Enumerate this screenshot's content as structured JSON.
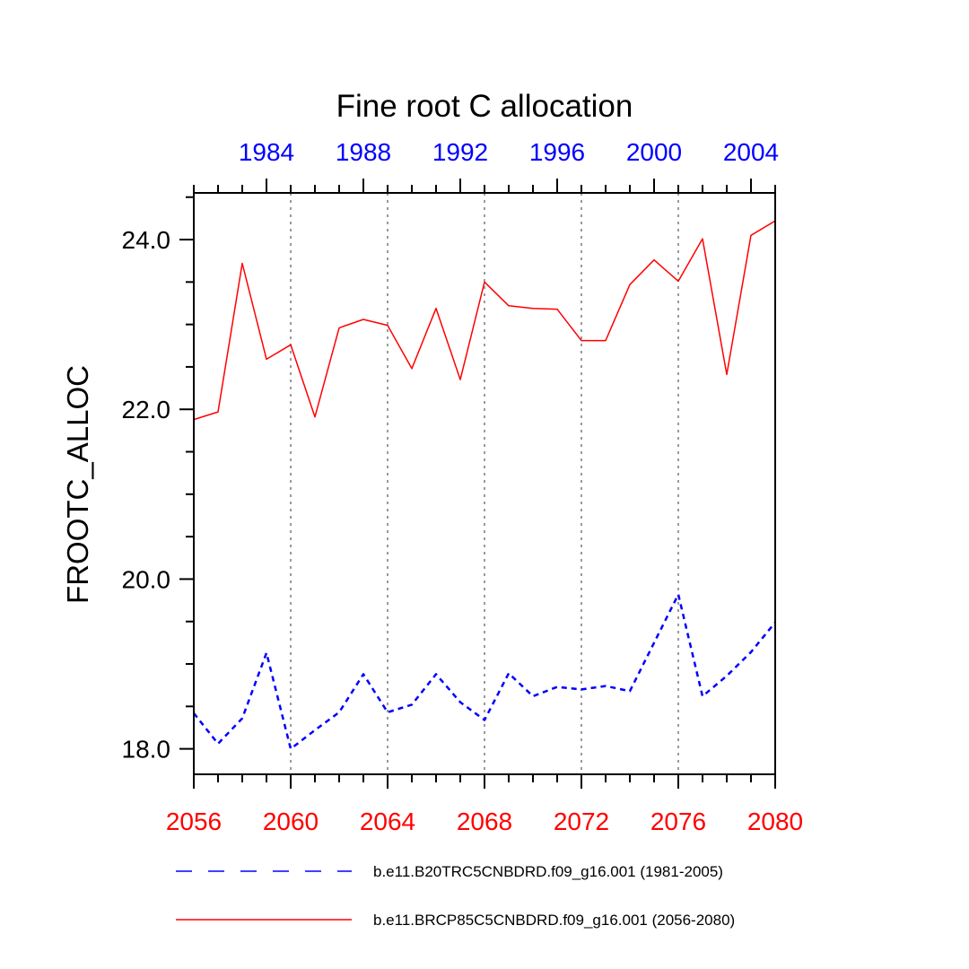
{
  "chart_data": {
    "type": "line",
    "title": "Fine root C allocation",
    "ylabel": "FROOTC_ALLOC",
    "ylim": [
      17.7,
      24.55
    ],
    "yticks": [
      18.0,
      20.0,
      22.0,
      24.0
    ],
    "ytick_labels": [
      "18.0",
      "20.0",
      "22.0",
      "24.0"
    ],
    "grid": "vertical dotted gray lines at labeled years",
    "x_bottom": {
      "range": [
        2056,
        2080
      ],
      "ticks": [
        2056,
        2060,
        2064,
        2068,
        2072,
        2076,
        2080
      ],
      "tick_labels": [
        "2056",
        "2060",
        "2064",
        "2068",
        "2072",
        "2076",
        "2080"
      ],
      "color": "#ff0000"
    },
    "x_top": {
      "range": [
        1981,
        2005
      ],
      "ticks": [
        1984,
        1988,
        1992,
        1996,
        2000,
        2004
      ],
      "tick_labels": [
        "1984",
        "1988",
        "1992",
        "1996",
        "2000",
        "2004"
      ],
      "color": "#0000ff"
    },
    "legend_position": "bottom",
    "series": [
      {
        "name": "b.e11.B20TRC5CNBDRD.f09_g16.001 (1981-2005)",
        "color": "#0000ff",
        "style": "dashed",
        "axis": "top",
        "x": [
          1981,
          1982,
          1983,
          1984,
          1985,
          1986,
          1987,
          1988,
          1989,
          1990,
          1991,
          1992,
          1993,
          1994,
          1995,
          1996,
          1997,
          1998,
          1999,
          2000,
          2001,
          2002,
          2003,
          2004,
          2005
        ],
        "values": [
          18.42,
          18.06,
          18.36,
          19.13,
          18.0,
          18.22,
          18.43,
          18.88,
          18.43,
          18.52,
          18.88,
          18.55,
          18.34,
          18.89,
          18.62,
          18.73,
          18.7,
          18.74,
          18.68,
          19.25,
          19.82,
          18.62,
          18.86,
          19.14,
          19.49
        ]
      },
      {
        "name": "b.e11.BRCP85C5CNBDRD.f09_g16.001 (2056-2080)",
        "color": "#ff0000",
        "style": "solid",
        "axis": "bottom",
        "x": [
          2056,
          2057,
          2058,
          2059,
          2060,
          2061,
          2062,
          2063,
          2064,
          2065,
          2066,
          2067,
          2068,
          2069,
          2070,
          2071,
          2072,
          2073,
          2074,
          2075,
          2076,
          2077,
          2078,
          2079,
          2080
        ],
        "values": [
          21.88,
          21.97,
          23.72,
          22.59,
          22.76,
          21.91,
          22.96,
          23.06,
          22.99,
          22.48,
          23.19,
          22.35,
          23.5,
          23.22,
          23.19,
          23.18,
          22.81,
          22.81,
          23.47,
          23.76,
          23.51,
          24.01,
          22.41,
          24.05,
          24.22
        ]
      }
    ]
  }
}
